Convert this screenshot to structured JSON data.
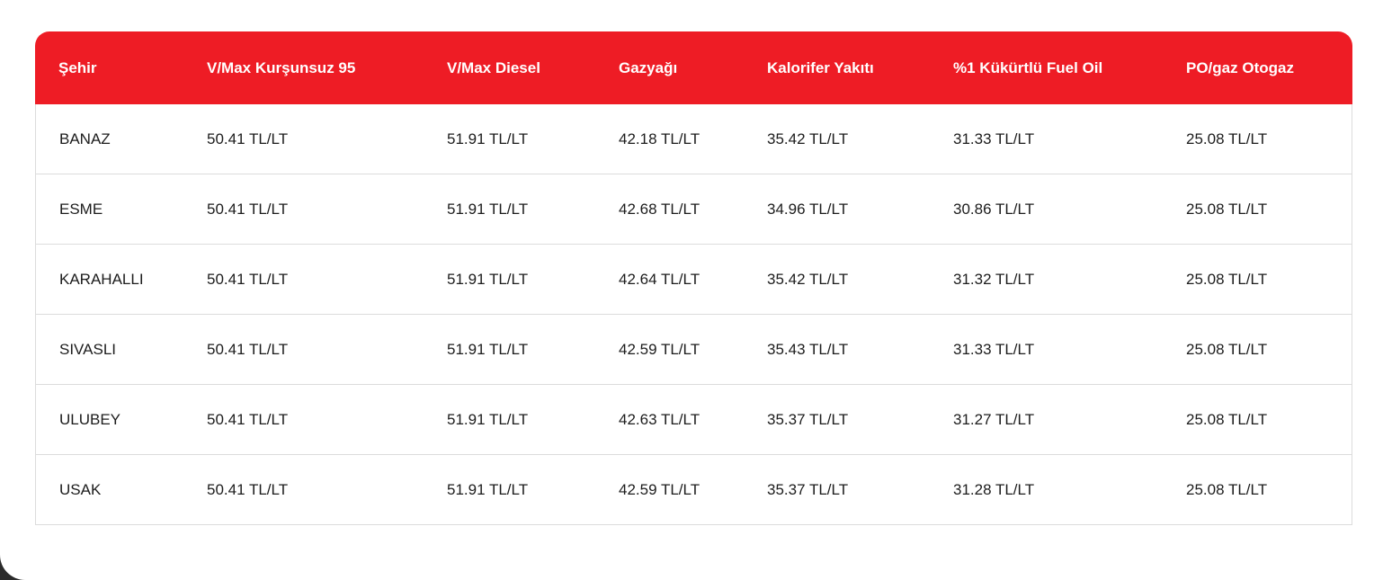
{
  "colors": {
    "header_bg": "#ee1c25",
    "header_text": "#ffffff",
    "row_border": "#dcdcdc"
  },
  "table": {
    "headers": [
      "Şehir",
      "V/Max Kurşunsuz 95",
      "V/Max Diesel",
      "Gazyağı",
      "Kalorifer Yakıtı",
      "%1 Kükürtlü Fuel Oil",
      "PO/gaz Otogaz"
    ],
    "rows": [
      [
        "BANAZ",
        "50.41 TL/LT",
        "51.91 TL/LT",
        "42.18 TL/LT",
        "35.42 TL/LT",
        "31.33 TL/LT",
        "25.08 TL/LT"
      ],
      [
        "ESME",
        "50.41 TL/LT",
        "51.91 TL/LT",
        "42.68 TL/LT",
        "34.96 TL/LT",
        "30.86 TL/LT",
        "25.08 TL/LT"
      ],
      [
        "KARAHALLI",
        "50.41 TL/LT",
        "51.91 TL/LT",
        "42.64 TL/LT",
        "35.42 TL/LT",
        "31.32 TL/LT",
        "25.08 TL/LT"
      ],
      [
        "SIVASLI",
        "50.41 TL/LT",
        "51.91 TL/LT",
        "42.59 TL/LT",
        "35.43 TL/LT",
        "31.33 TL/LT",
        "25.08 TL/LT"
      ],
      [
        "ULUBEY",
        "50.41 TL/LT",
        "51.91 TL/LT",
        "42.63 TL/LT",
        "35.37 TL/LT",
        "31.27 TL/LT",
        "25.08 TL/LT"
      ],
      [
        "USAK",
        "50.41 TL/LT",
        "51.91 TL/LT",
        "42.59 TL/LT",
        "35.37 TL/LT",
        "31.28 TL/LT",
        "25.08 TL/LT"
      ]
    ]
  }
}
